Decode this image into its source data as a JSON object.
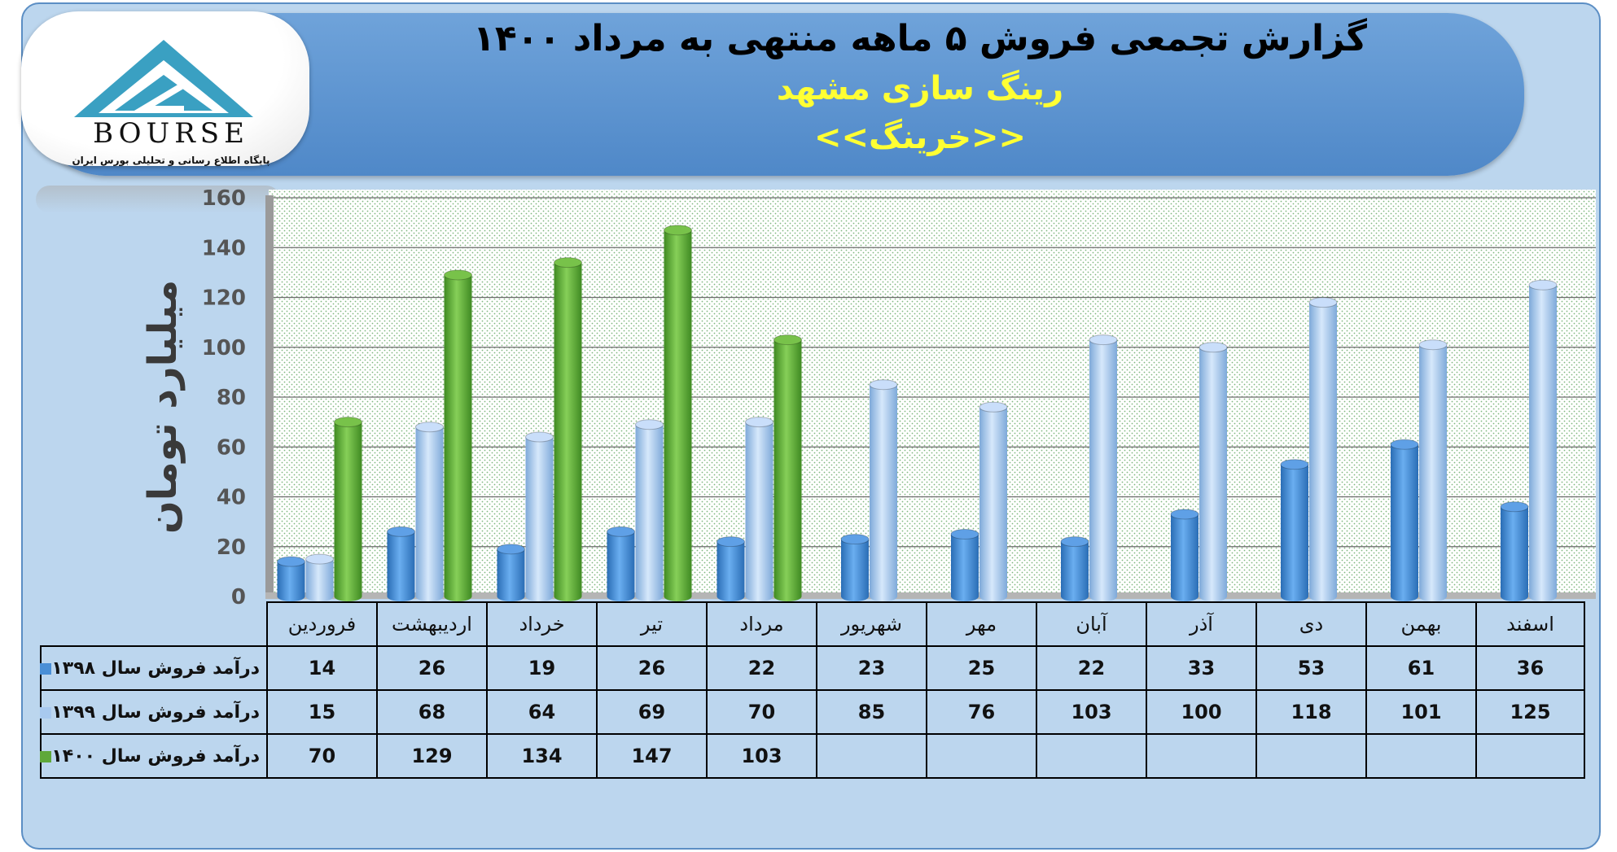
{
  "header": {
    "title": "گزارش تجمعی فروش ۵ ماهه منتهی به مرداد ۱۴۰۰",
    "subtitle": "رینگ سازی مشهد",
    "company": "<<خرینگ>>"
  },
  "logo": {
    "text": "BOURSE",
    "caption": "پایگاه اطلاع رسانی و تحلیلی بورس ایران"
  },
  "colors": {
    "s1398": "#4a8fd6",
    "s1399": "#a8c9ef",
    "s1400": "#5fa83a"
  },
  "chart_data": {
    "type": "bar",
    "title": "گزارش تجمعی فروش ۵ ماهه منتهی به مرداد ۱۴۰۰",
    "ylabel": "میلیارد تومان",
    "ylim": [
      0,
      160
    ],
    "yticks": [
      0,
      20,
      40,
      60,
      80,
      100,
      120,
      140,
      160
    ],
    "grid": true,
    "categories": [
      "فروردین",
      "اردیبهشت",
      "خرداد",
      "تیر",
      "مرداد",
      "شهریور",
      "مهر",
      "آبان",
      "آذر",
      "دی",
      "بهمن",
      "اسفند"
    ],
    "series": [
      {
        "name": "درآمد فروش سال ۱۳۹۸",
        "values": [
          14,
          26,
          19,
          26,
          22,
          23,
          25,
          22,
          33,
          53,
          61,
          36
        ]
      },
      {
        "name": "درآمد فروش سال ۱۳۹۹",
        "values": [
          15,
          68,
          64,
          69,
          70,
          85,
          76,
          103,
          100,
          118,
          101,
          125
        ]
      },
      {
        "name": "درآمد فروش سال ۱۴۰۰",
        "values": [
          70,
          129,
          134,
          147,
          103,
          null,
          null,
          null,
          null,
          null,
          null,
          null
        ]
      }
    ]
  }
}
